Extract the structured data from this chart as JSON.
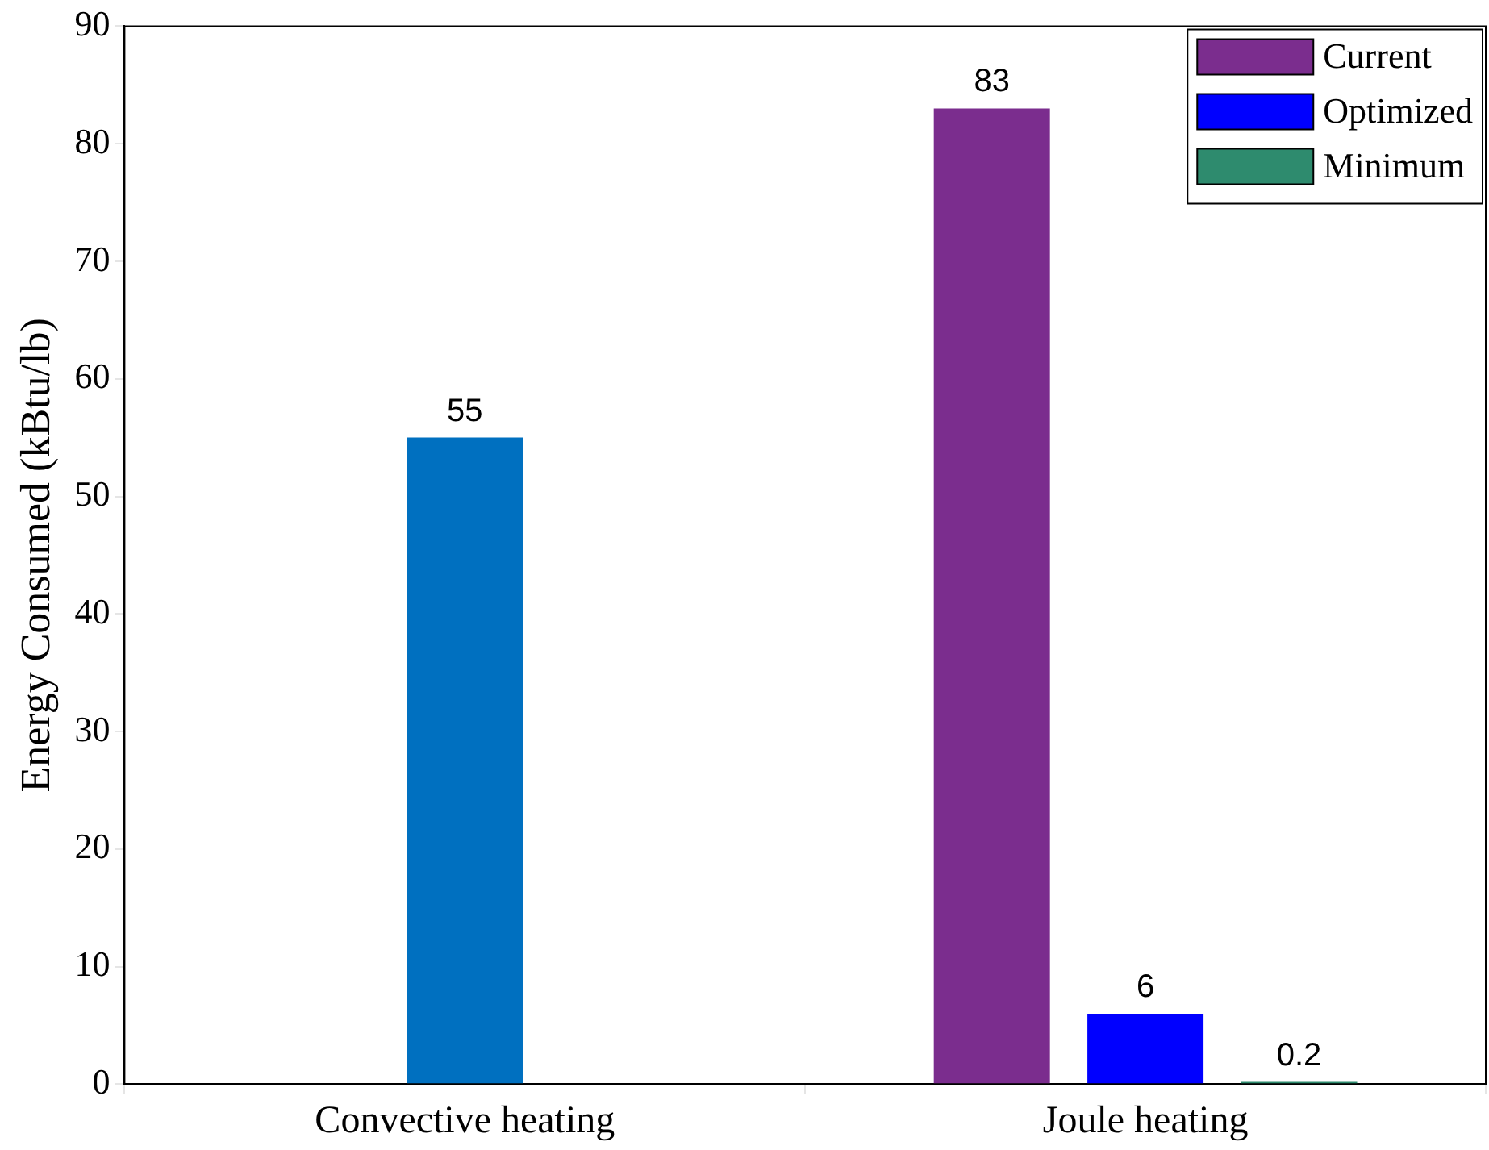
{
  "chart_data": {
    "type": "bar",
    "ylabel": "Energy Consumed (kBtu/lb)",
    "categories": [
      "Convective heating",
      "Joule heating"
    ],
    "series": [
      {
        "color": "#0070c0",
        "values": [
          55,
          null
        ]
      },
      {
        "name": "Current",
        "color": "#7b2d8e",
        "values": [
          null,
          83
        ]
      },
      {
        "name": "Optimized",
        "color": "#0000ff",
        "values": [
          null,
          6
        ]
      },
      {
        "name": "Minimum",
        "color": "#2e8b6e",
        "values": [
          null,
          0.2
        ]
      }
    ],
    "ylim": [
      0,
      90
    ],
    "yticks": [
      0,
      10,
      20,
      30,
      40,
      50,
      60,
      70,
      80,
      90
    ],
    "grid": false,
    "legend": "top right",
    "data_labels": true
  }
}
